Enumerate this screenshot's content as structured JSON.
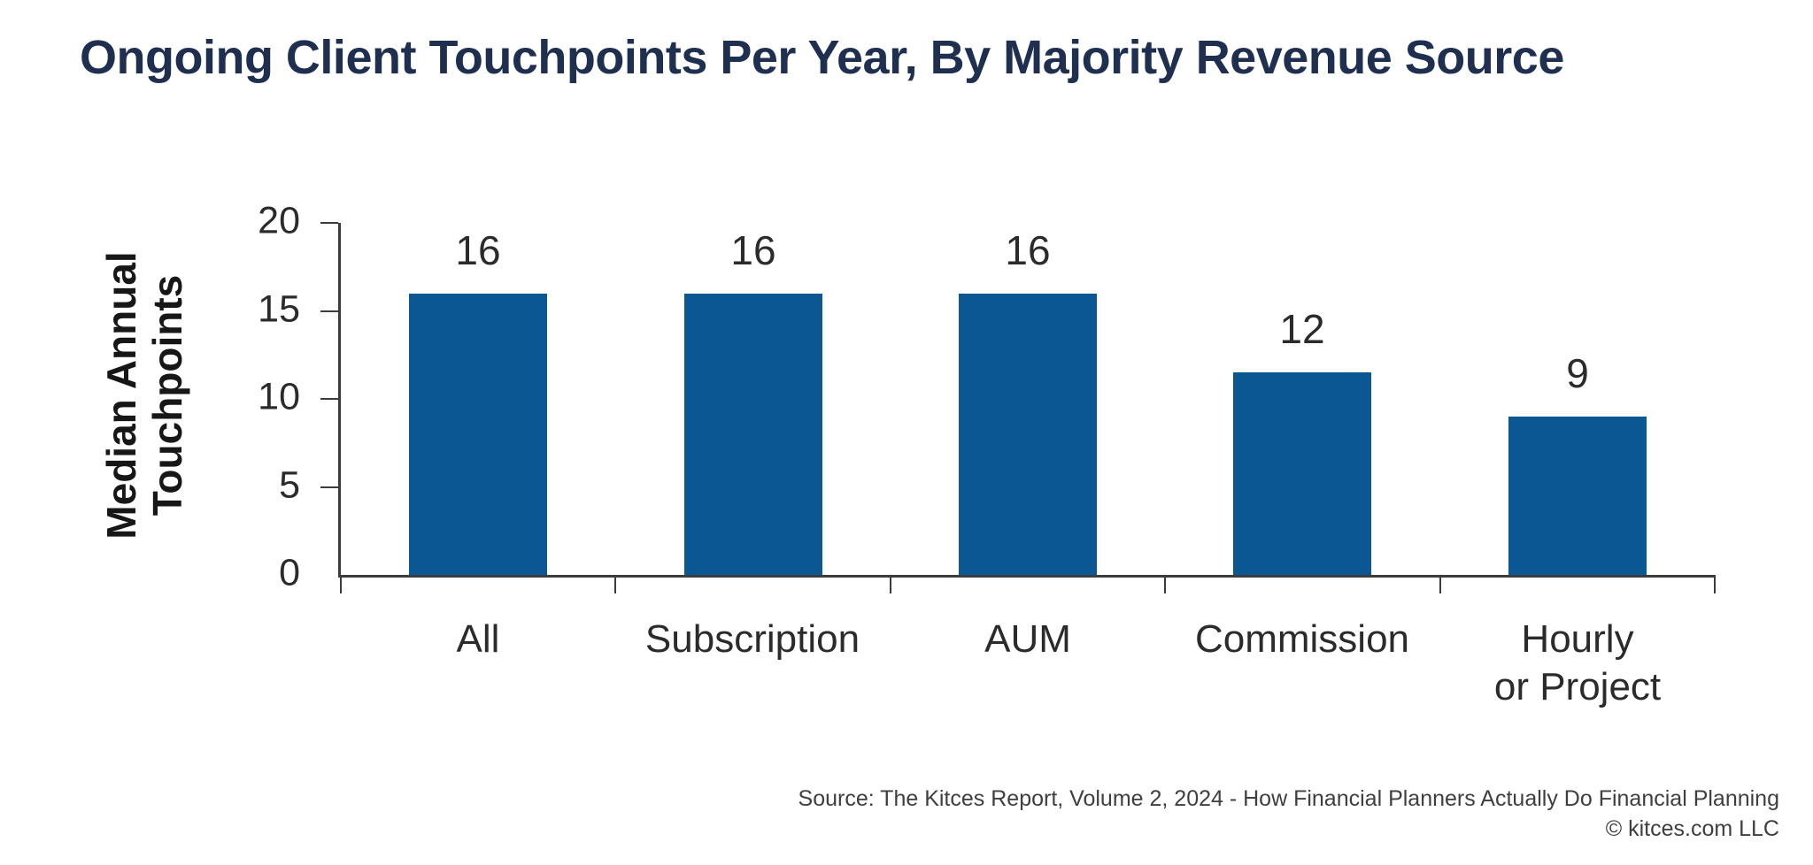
{
  "title": "Ongoing Client Touchpoints Per Year, By Majority Revenue Source",
  "chart_data": {
    "type": "bar",
    "title": "Ongoing Client Touchpoints Per Year, By Majority Revenue Source",
    "xlabel": "",
    "ylabel": "Median Annual Touchpoints",
    "ylabel_lines": [
      "Median Annual",
      "Touchpoints"
    ],
    "categories": [
      "All",
      "Subscription",
      "AUM",
      "Commission",
      "Hourly or Project"
    ],
    "categories_lines": [
      [
        "All"
      ],
      [
        "Subscription"
      ],
      [
        "AUM"
      ],
      [
        "Commission"
      ],
      [
        "Hourly",
        "or Project"
      ]
    ],
    "values": [
      16,
      16,
      16,
      12,
      9
    ],
    "bar_render_heights": [
      16,
      16,
      16,
      11.5,
      9
    ],
    "ylim": [
      0,
      20
    ],
    "yticks": [
      0,
      5,
      10,
      15,
      20
    ],
    "grid": false,
    "legend": null,
    "bar_color": "#0B5794"
  },
  "footer": {
    "source_line": "Source: The Kitces Report, Volume 2, 2024 - How Financial Planners Actually Do Financial Planning",
    "copyright_line": "© kitces.com LLC"
  },
  "colors": {
    "title": "#1F2F50",
    "bar": "#0B5794",
    "axis": "#3C3C3C",
    "tick_text": "#2B2B2B",
    "footer_text": "#3F3F3F"
  }
}
